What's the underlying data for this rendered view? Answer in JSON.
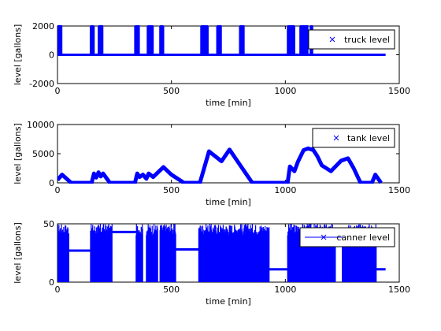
{
  "chart_data": [
    {
      "type": "line",
      "xlabel": "time [min]",
      "ylabel": "level [gallons]",
      "xlim": [
        0,
        1500
      ],
      "ylim": [
        -2000,
        2000
      ],
      "xticks": [
        0,
        500,
        1000,
        1500
      ],
      "yticks": [
        -2000,
        0,
        2000
      ],
      "xtick_labels": [
        "0",
        "500",
        "1000",
        "1500"
      ],
      "ytick_labels": [
        "-2000",
        "0",
        "2000"
      ],
      "grid": false,
      "legend": {
        "position": "top-right",
        "entries": [
          "truck level"
        ],
        "marker": "x",
        "line": false
      },
      "color": "#0000ff",
      "series": [
        {
          "name": "truck level",
          "baseline": 0,
          "x_range": [
            0,
            1440
          ],
          "pulse_level": 2000,
          "pulse_bursts": [
            [
              0,
              20
            ],
            [
              145,
              160
            ],
            [
              180,
              200
            ],
            [
              340,
              360
            ],
            [
              395,
              420
            ],
            [
              450,
              465
            ],
            [
              630,
              660
            ],
            [
              700,
              720
            ],
            [
              800,
              820
            ],
            [
              1010,
              1040
            ],
            [
              1065,
              1100
            ],
            [
              1110,
              1120
            ]
          ]
        }
      ]
    },
    {
      "type": "line",
      "xlabel": "time [min]",
      "ylabel": "level [gallons]",
      "xlim": [
        0,
        1500
      ],
      "ylim": [
        0,
        10000
      ],
      "xticks": [
        0,
        500,
        1000,
        1500
      ],
      "yticks": [
        0,
        5000,
        10000
      ],
      "xtick_labels": [
        "0",
        "500",
        "1000",
        "1500"
      ],
      "ytick_labels": [
        "0",
        "5000",
        "10000"
      ],
      "grid": false,
      "legend": {
        "position": "top-right",
        "entries": [
          "tank level"
        ],
        "marker": "x",
        "line": false
      },
      "color": "#0000ff",
      "series": [
        {
          "name": "tank level",
          "x": [
            0,
            20,
            60,
            150,
            160,
            170,
            180,
            190,
            200,
            230,
            340,
            350,
            360,
            375,
            390,
            400,
            420,
            465,
            500,
            555,
            625,
            665,
            720,
            755,
            790,
            855,
            920,
            1010,
            1020,
            1040,
            1055,
            1080,
            1100,
            1115,
            1120,
            1140,
            1160,
            1200,
            1245,
            1275,
            1300,
            1330,
            1380,
            1395,
            1420
          ],
          "y": [
            500,
            1400,
            0,
            0,
            1600,
            900,
            1800,
            1100,
            1600,
            0,
            0,
            1600,
            1000,
            1400,
            700,
            1600,
            1000,
            2700,
            1400,
            0,
            0,
            5400,
            3700,
            5700,
            3700,
            0,
            0,
            0,
            2800,
            2000,
            3600,
            5600,
            5900,
            5700,
            5800,
            4600,
            3000,
            2000,
            3800,
            4200,
            2500,
            0,
            0,
            1400,
            0
          ]
        }
      ]
    },
    {
      "type": "line",
      "xlabel": "time [min]",
      "ylabel": "level [gallons]",
      "xlim": [
        0,
        1500
      ],
      "ylim": [
        0,
        50
      ],
      "xticks": [
        0,
        500,
        1000,
        1500
      ],
      "yticks": [
        0,
        50
      ],
      "xtick_labels": [
        "0",
        "500",
        "1000",
        "1500"
      ],
      "ytick_labels": [
        "0",
        "50"
      ],
      "grid": false,
      "legend": {
        "position": "top-right",
        "entries": [
          "canner level"
        ],
        "marker": "x",
        "line": true
      },
      "color": "#0000ff",
      "series": [
        {
          "name": "canner level",
          "bursts": [
            [
              0,
              50
            ],
            [
              145,
              240
            ],
            [
              345,
              375
            ],
            [
              390,
              440
            ],
            [
              450,
              520
            ],
            [
              620,
              930
            ],
            [
              1010,
              1220
            ],
            [
              1250,
              1400
            ]
          ],
          "steady_segments": [
            {
              "x": [
                50,
                145
              ],
              "y": 27
            },
            {
              "x": [
                240,
                345
              ],
              "y": 43
            },
            {
              "x": [
                520,
                620
              ],
              "y": 28
            },
            {
              "x": [
                930,
                1010
              ],
              "y": 11
            },
            {
              "x": [
                1400,
                1440
              ],
              "y": 11
            }
          ]
        }
      ]
    }
  ]
}
